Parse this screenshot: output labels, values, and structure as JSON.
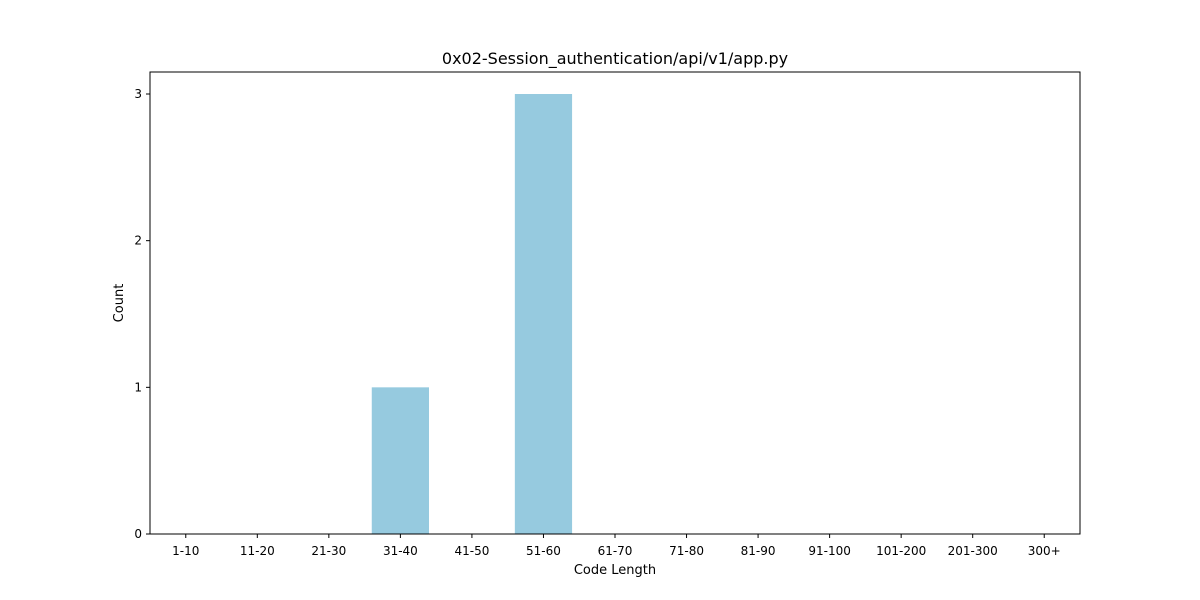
{
  "chart_data": {
    "type": "bar",
    "title": "0x02-Session_authentication/api/v1/app.py",
    "xlabel": "Code Length",
    "ylabel": "Count",
    "categories": [
      "1-10",
      "11-20",
      "21-30",
      "31-40",
      "41-50",
      "51-60",
      "61-70",
      "71-80",
      "81-90",
      "91-100",
      "101-200",
      "201-300",
      "300+"
    ],
    "values": [
      0,
      0,
      0,
      1,
      0,
      3,
      0,
      0,
      0,
      0,
      0,
      0,
      0
    ],
    "ylim": [
      0,
      3.15
    ],
    "yticks": [
      0,
      1,
      2,
      3
    ],
    "bar_color": "#96cadf",
    "grid": false
  }
}
